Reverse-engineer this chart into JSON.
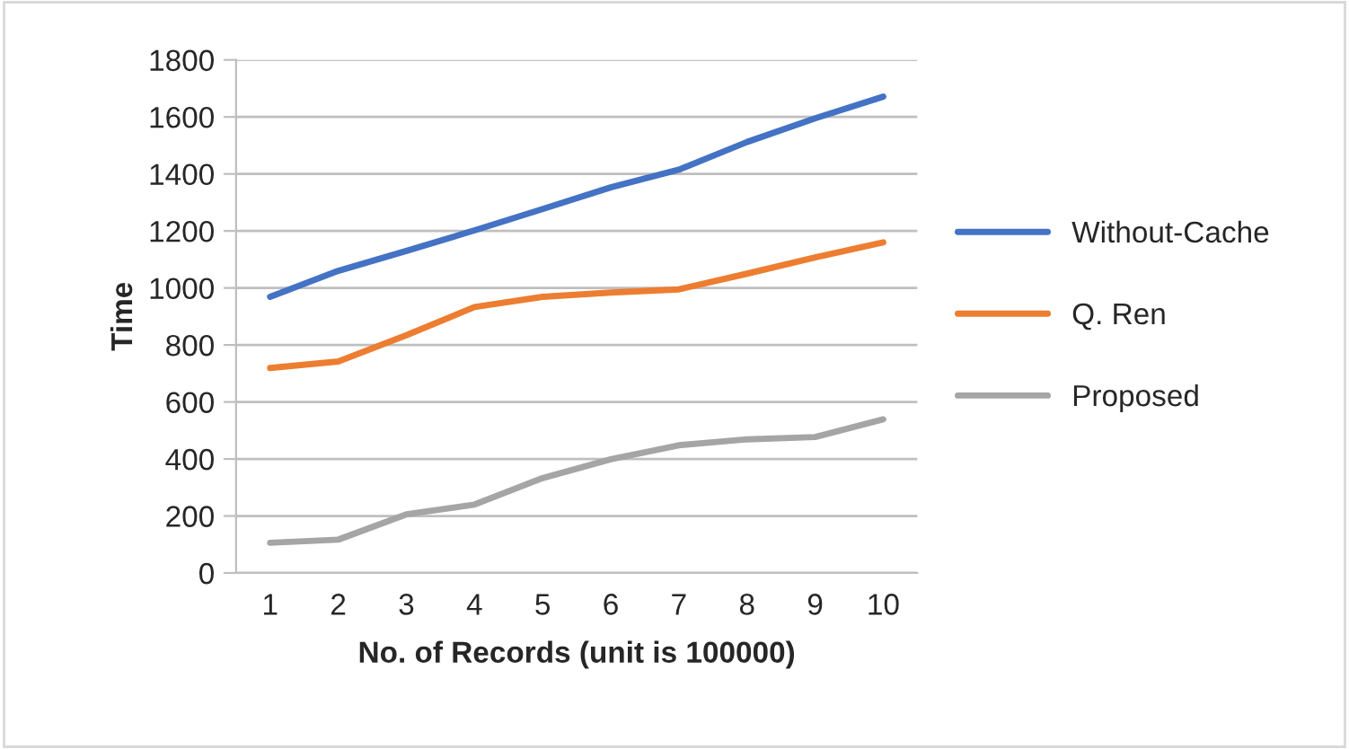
{
  "chart_data": {
    "type": "line",
    "xlabel": "No. of Records (unit is 100000)",
    "ylabel": "Time",
    "categories": [
      "1",
      "2",
      "3",
      "4",
      "5",
      "6",
      "7",
      "8",
      "9",
      "10"
    ],
    "series": [
      {
        "name": "Without-Cache",
        "color": "#4472c4",
        "values": [
          969,
          1060,
          1130,
          1202,
          1277,
          1353,
          1415,
          1512,
          1595,
          1671
        ]
      },
      {
        "name": "Q. Ren",
        "color": "#ed7d31",
        "values": [
          719,
          742,
          834,
          933,
          969,
          984,
          995,
          1050,
          1107,
          1160
        ]
      },
      {
        "name": "Proposed",
        "color": "#a5a5a5",
        "values": [
          106,
          117,
          206,
          240,
          333,
          399,
          448,
          469,
          477,
          539
        ]
      }
    ],
    "ylim": [
      0,
      1800
    ],
    "yticks": [
      0,
      200,
      400,
      600,
      800,
      1000,
      1200,
      1400,
      1600,
      1800
    ],
    "grid": "y",
    "legend": "right",
    "marker": "none",
    "line_style": "solid"
  }
}
